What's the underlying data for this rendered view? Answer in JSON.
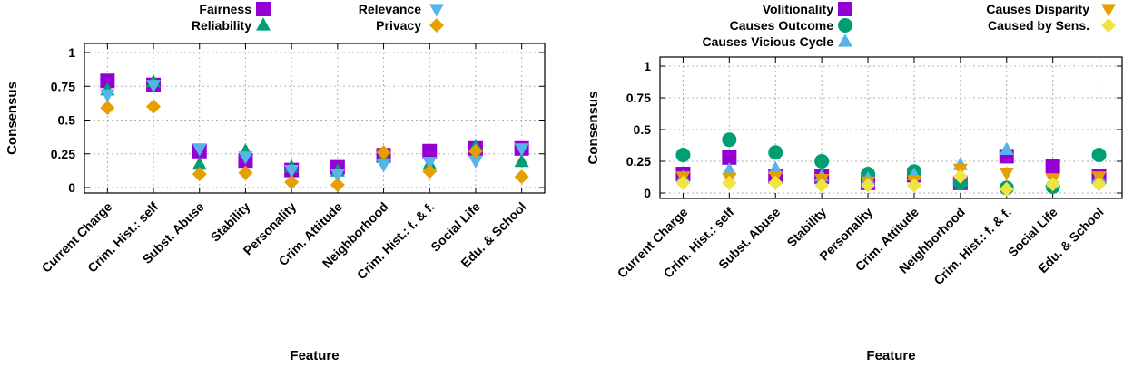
{
  "chart_data": [
    {
      "type": "scatter",
      "xlabel": "Feature",
      "ylabel": "Consensus",
      "ylim": [
        0,
        1
      ],
      "yticks": [
        {
          "value": 0,
          "label": "0"
        },
        {
          "value": 0.25,
          "label": "0.25"
        },
        {
          "value": 0.5,
          "label": "0.5"
        },
        {
          "value": 0.75,
          "label": "0.75"
        },
        {
          "value": 1,
          "label": "1"
        }
      ],
      "grid": true,
      "legend_position": "top",
      "categories": [
        "Current Charge",
        "Crim. Hist.: self",
        "Subst. Abuse",
        "Stability",
        "Personality",
        "Crim. Attitude",
        "Neighborhood",
        "Crim. Hist.: f. & f.",
        "Social Life",
        "Edu. & School"
      ],
      "series": [
        {
          "name": "Fairness",
          "marker": "square",
          "color": "#9400D3",
          "values": [
            0.79,
            0.76,
            0.27,
            0.2,
            0.13,
            0.15,
            0.24,
            0.27,
            0.29,
            0.29
          ]
        },
        {
          "name": "Reliability",
          "marker": "triangle-up",
          "color": "#009E73",
          "values": [
            0.72,
            0.78,
            0.17,
            0.27,
            0.15,
            0.12,
            0.22,
            0.17,
            0.3,
            0.19
          ]
        },
        {
          "name": "Relevance",
          "marker": "triangle-down",
          "color": "#56B4E9",
          "values": [
            0.69,
            0.76,
            0.29,
            0.23,
            0.13,
            0.1,
            0.17,
            0.19,
            0.2,
            0.29
          ]
        },
        {
          "name": "Privacy",
          "marker": "diamond",
          "color": "#E69F00",
          "values": [
            0.59,
            0.6,
            0.1,
            0.11,
            0.04,
            0.02,
            0.26,
            0.12,
            0.27,
            0.08
          ]
        }
      ]
    },
    {
      "type": "scatter",
      "xlabel": "Feature",
      "ylabel": "Consensus",
      "ylim": [
        0,
        1
      ],
      "yticks": [
        {
          "value": 0,
          "label": "0"
        },
        {
          "value": 0.25,
          "label": "0.25"
        },
        {
          "value": 0.5,
          "label": "0.5"
        },
        {
          "value": 0.75,
          "label": "0.75"
        },
        {
          "value": 1,
          "label": "1"
        }
      ],
      "grid": true,
      "legend_position": "top",
      "categories": [
        "Current Charge",
        "Crim. Hist.: self",
        "Subst. Abuse",
        "Stability",
        "Personality",
        "Crim. Attitude",
        "Neighborhood",
        "Crim. Hist.: f. & f.",
        "Social Life",
        "Edu. & School"
      ],
      "series": [
        {
          "name": "Volitionality",
          "marker": "square",
          "color": "#9400D3",
          "values": [
            0.15,
            0.28,
            0.13,
            0.13,
            0.08,
            0.14,
            0.08,
            0.29,
            0.21,
            0.13
          ]
        },
        {
          "name": "Causes Outcome",
          "marker": "circle",
          "color": "#009E73",
          "values": [
            0.3,
            0.42,
            0.32,
            0.25,
            0.15,
            0.17,
            0.08,
            0.04,
            0.05,
            0.3
          ]
        },
        {
          "name": "Causes Vicious Cycle",
          "marker": "triangle-up",
          "color": "#56B4E9",
          "values": [
            0.12,
            0.18,
            0.19,
            0.13,
            0.11,
            0.14,
            0.22,
            0.34,
            0.08,
            0.12
          ]
        },
        {
          "name": "Causes Disparity",
          "marker": "triangle-down",
          "color": "#E69F00",
          "values": [
            0.13,
            0.12,
            0.13,
            0.11,
            0.09,
            0.1,
            0.19,
            0.16,
            0.11,
            0.13
          ]
        },
        {
          "name": "Caused by Sens.",
          "marker": "diamond",
          "color": "#F0E442",
          "values": [
            0.08,
            0.08,
            0.08,
            0.06,
            0.06,
            0.06,
            0.13,
            0.03,
            0.07,
            0.07
          ]
        }
      ]
    }
  ]
}
